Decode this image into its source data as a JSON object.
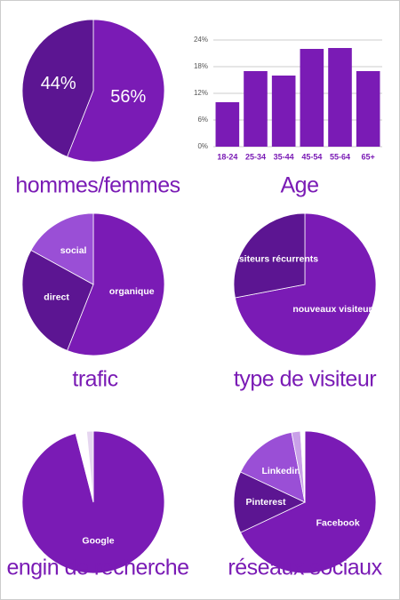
{
  "chart_data": [
    {
      "type": "pie",
      "title": "hommes/femmes",
      "values": [
        56,
        44
      ],
      "value_labels": [
        "56%",
        "44%"
      ],
      "colors": [
        "#7a1bb5",
        "#5c1592"
      ]
    },
    {
      "type": "bar",
      "title": "Age",
      "categories": [
        "18-24",
        "25-34",
        "35-44",
        "45-54",
        "55-64",
        "65+"
      ],
      "values": [
        10,
        17,
        16,
        22,
        22.2,
        17
      ],
      "color": "#7a1bb5",
      "ylim": [
        0,
        24
      ],
      "yticks": [
        {
          "value": 0,
          "label": "0%"
        },
        {
          "value": 6,
          "label": "6%"
        },
        {
          "value": 12,
          "label": "12%"
        },
        {
          "value": 18,
          "label": "18%"
        },
        {
          "value": 24,
          "label": "24%"
        }
      ],
      "grid": true
    },
    {
      "type": "pie",
      "title": "trafic",
      "categories": [
        "organique",
        "direct",
        "social"
      ],
      "values": [
        56,
        27,
        17
      ],
      "colors": [
        "#7a1bb5",
        "#5c1592",
        "#9a4fd6"
      ]
    },
    {
      "type": "pie",
      "title": "type de visiteur",
      "categories": [
        "nouveaux visiteurs",
        "visiteurs récurrents"
      ],
      "values": [
        72,
        28
      ],
      "colors": [
        "#7a1bb5",
        "#5c1592"
      ]
    },
    {
      "type": "pie",
      "title": "engin de recherche",
      "categories": [
        "Google",
        null,
        null
      ],
      "values": [
        96,
        2.5,
        1.5
      ],
      "colors": [
        "#7a1bb5",
        "#ffffff",
        "#e6d6f0"
      ]
    },
    {
      "type": "pie",
      "title": "réseaux sociaux",
      "categories": [
        "Facebook",
        "Pinterest",
        "Linkedin",
        null,
        null
      ],
      "values": [
        68,
        14,
        15,
        2,
        1
      ],
      "colors": [
        "#7a1bb5",
        "#5c1592",
        "#9a4fd6",
        "#c9a0e8",
        "#ffffff"
      ]
    }
  ]
}
